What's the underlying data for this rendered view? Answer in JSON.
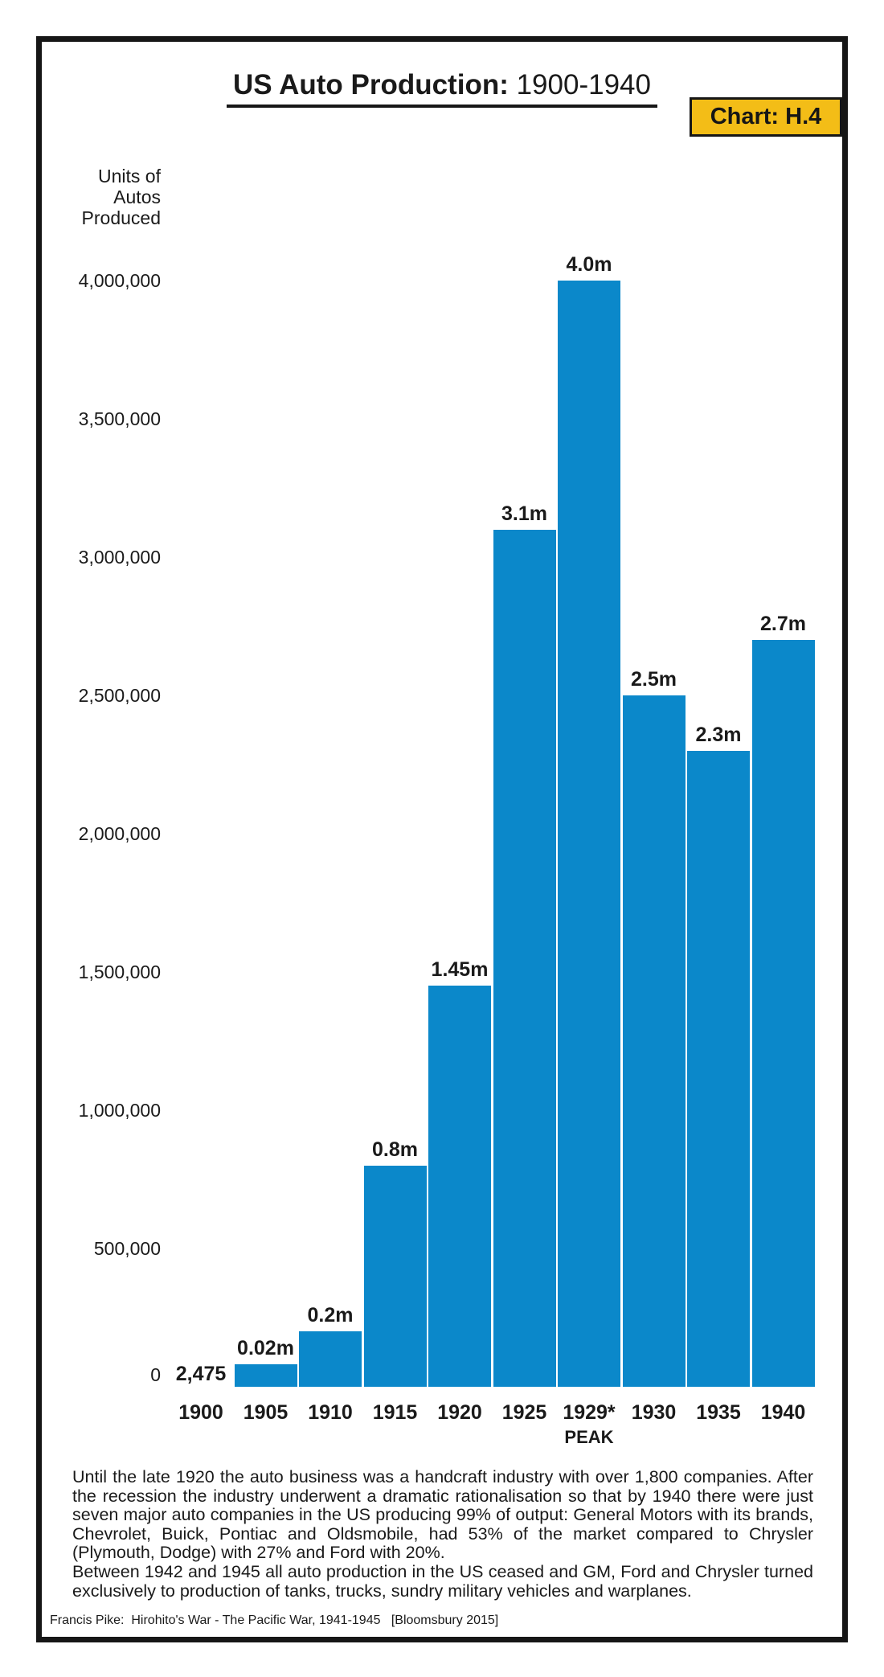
{
  "header": {
    "title_bold": "US Auto Production:",
    "title_rest": " 1900-1940",
    "badge_label": "Chart: H.4",
    "badge_bg": "#f3bd17"
  },
  "y_axis": {
    "title_lines": [
      "Units of",
      "Autos",
      "Produced"
    ]
  },
  "chart_data": {
    "type": "bar",
    "title": "US Auto Production: 1900-1940",
    "ylabel": "Units of Autos Produced",
    "xlabel": "",
    "categories": [
      "1900",
      "1905",
      "1910",
      "1915",
      "1920",
      "1925",
      "1929*",
      "1930",
      "1935",
      "1940"
    ],
    "values": [
      2475,
      20000,
      200000,
      800000,
      1450000,
      3100000,
      4000000,
      2500000,
      2300000,
      2700000
    ],
    "bar_labels": [
      "2,475",
      "0.02m",
      "0.2m",
      "0.8m",
      "1.45m",
      "3.1m",
      "4.0m",
      "2.5m",
      "2.3m",
      "2.7m"
    ],
    "peak_annotation": {
      "category": "1929*",
      "label": "PEAK"
    },
    "yticks": [
      {
        "label": "4,000,000",
        "value": 4000000
      },
      {
        "label": "3,500,000",
        "value": 3500000
      },
      {
        "label": "3,000,000",
        "value": 3000000
      },
      {
        "label": "2,500,000",
        "value": 2500000
      },
      {
        "label": "2,000,000",
        "value": 2000000
      },
      {
        "label": "1,500,000",
        "value": 1500000
      },
      {
        "label": "1,000,000",
        "value": 1000000
      },
      {
        "label": "500,000",
        "value": 500000
      },
      {
        "label": "0",
        "value": 0
      }
    ],
    "ylim": [
      0,
      4200000
    ],
    "grid": false,
    "legend": false,
    "bar_color": "#0b88ca"
  },
  "notes": {
    "para1": "Until the late 1920 the auto business was a handcraft industry with over 1,800 companies.  After the recession the industry underwent a dramatic rationalisation so that by 1940 there were just seven major auto companies in the US producing 99% of output: General Motors with its brands, Chevrolet, Buick, Pontiac and Oldsmobile, had 53% of the market compared to Chrysler (Plymouth, Dodge) with 27% and Ford with 20%.",
    "para2": "Between 1942 and 1945 all auto production in the US ceased and GM, Ford and Chrysler turned exclusively to production of tanks, trucks, sundry military vehicles and warplanes."
  },
  "footer": {
    "citation": "Francis Pike:  Hirohito's War - The Pacific War, 1941-1945   [Bloomsbury 2015]"
  }
}
